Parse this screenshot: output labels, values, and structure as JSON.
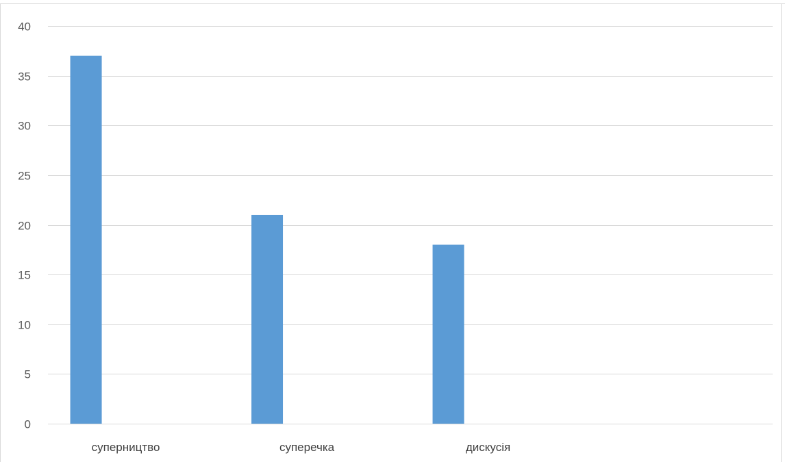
{
  "chart_data": {
    "type": "bar",
    "categories": [
      "суперництво",
      "суперечка",
      "дискусія",
      ""
    ],
    "values": [
      37,
      21,
      18,
      null
    ],
    "title": "",
    "xlabel": "",
    "ylabel": "",
    "ylim": [
      0,
      40
    ],
    "yticks": [
      0,
      5,
      10,
      15,
      20,
      25,
      30,
      35,
      40
    ],
    "grid": true,
    "legend": "none",
    "bar_color": "#5b9bd5",
    "grid_color": "#d9d9d9"
  }
}
